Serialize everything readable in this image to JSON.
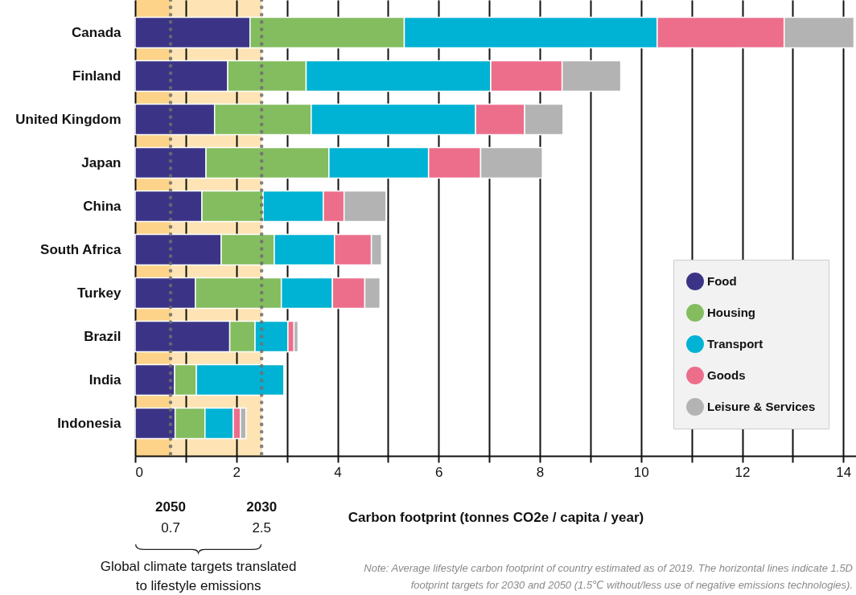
{
  "chart_data": {
    "type": "bar",
    "orientation": "horizontal",
    "stacked": true,
    "categories": [
      "Canada",
      "Finland",
      "United Kingdom",
      "Japan",
      "China",
      "South Africa",
      "Turkey",
      "Brazil",
      "India",
      "Indonesia"
    ],
    "series": [
      {
        "name": "Food",
        "color": "#3b3486",
        "values": [
          2.27,
          1.83,
          1.57,
          1.4,
          1.32,
          1.7,
          1.19,
          1.87,
          0.78,
          0.79
        ]
      },
      {
        "name": "Housing",
        "color": "#83bd5f",
        "values": [
          3.05,
          1.55,
          1.91,
          2.43,
          1.21,
          1.05,
          1.7,
          0.5,
          0.43,
          0.59
        ]
      },
      {
        "name": "Transport",
        "color": "#00b2d3",
        "values": [
          5.0,
          3.65,
          3.25,
          1.97,
          1.19,
          1.19,
          1.01,
          0.65,
          1.73,
          0.56
        ]
      },
      {
        "name": "Goods",
        "color": "#ec6e8b",
        "values": [
          2.51,
          1.41,
          0.97,
          1.03,
          0.41,
          0.73,
          0.64,
          0.12,
          null,
          0.14
        ]
      },
      {
        "name": "Leisure & Services",
        "color": "#b3b3b3",
        "values": [
          1.38,
          1.16,
          0.76,
          1.22,
          0.83,
          0.2,
          0.3,
          0.08,
          null,
          0.11
        ]
      }
    ],
    "xlim": [
      0,
      14.25
    ],
    "xticks": [
      0,
      {
        "value": 1,
        "label": null
      },
      2,
      {
        "value": 3,
        "label": null
      },
      4,
      {
        "value": 5,
        "label": null
      },
      6,
      {
        "value": 7,
        "label": null
      },
      8,
      {
        "value": 9,
        "label": null
      },
      10,
      {
        "value": 11,
        "label": null
      },
      12,
      {
        "value": 13,
        "label": null
      },
      14
    ],
    "xlabel": "Carbon footprint (tonnes CO2e / capita / year)",
    "grid": "x",
    "legend": "bottom right",
    "bands": [
      {
        "axis": "x",
        "from": 0,
        "to": 0.7,
        "color": "#fdd38a"
      },
      {
        "axis": "x",
        "from": 0.7,
        "to": 2.5,
        "color": "#fee4b5"
      }
    ],
    "ref_lines": [
      {
        "axis": "x",
        "value": 0.7,
        "line_style": "dotted"
      },
      {
        "axis": "x",
        "value": 2.5,
        "line_style": "dotted"
      }
    ],
    "annotations": [
      "2050",
      "0.7",
      "2030",
      "2.5",
      "Global climate targets translated to lifestyle emissions",
      "Note: Average lifestyle carbon footprint of country estimated as of 2019. The horizontal lines indicate 1.5D footprint targets for 2030 and 2050 (1.5℃ without/less use of negative emissions technologies)."
    ]
  }
}
